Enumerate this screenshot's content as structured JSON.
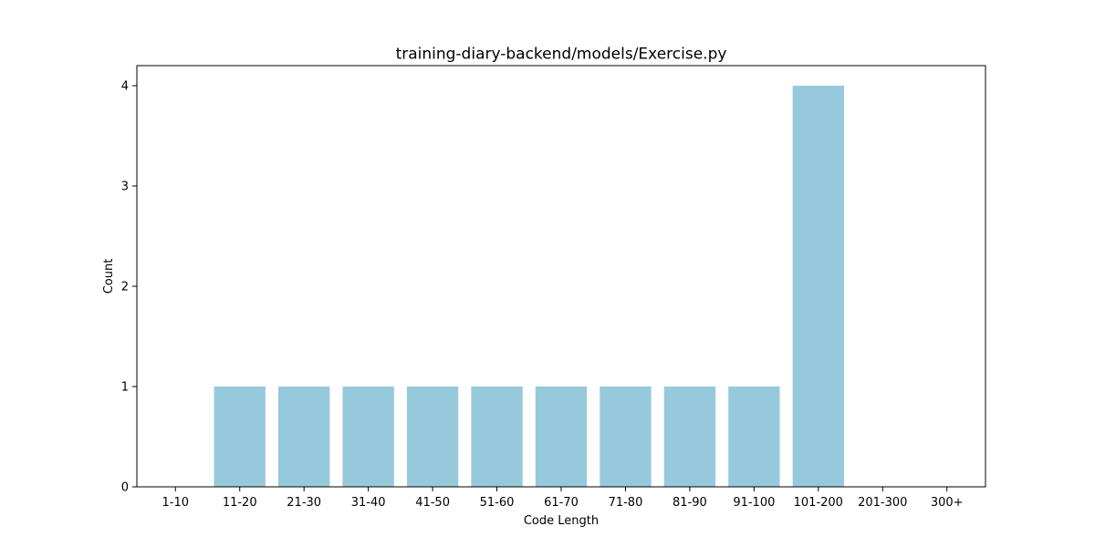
{
  "chart_data": {
    "type": "bar",
    "title": "training-diary-backend/models/Exercise.py",
    "xlabel": "Code Length",
    "ylabel": "Count",
    "categories": [
      "1-10",
      "11-20",
      "21-30",
      "31-40",
      "41-50",
      "51-60",
      "61-70",
      "71-80",
      "81-90",
      "91-100",
      "101-200",
      "201-300",
      "300+"
    ],
    "values": [
      0,
      1,
      1,
      1,
      1,
      1,
      1,
      1,
      1,
      1,
      4,
      0,
      0
    ],
    "ylim": [
      0,
      4.2
    ],
    "yticks": [
      0,
      1,
      2,
      3,
      4
    ],
    "bar_color": "#96c9dc",
    "grid": false,
    "legend": "none"
  }
}
